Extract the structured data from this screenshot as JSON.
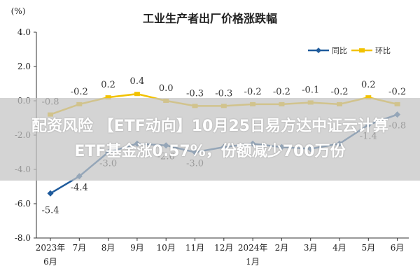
{
  "chart_data": {
    "type": "line",
    "title": "工业生产者出厂价格涨跌幅",
    "y_unit": "(%)",
    "ylim": [
      -8.0,
      4.0
    ],
    "yticks": [
      "4.0",
      "2.0",
      "0.0",
      "-2.0",
      "-4.0",
      "-6.0",
      "-8.0"
    ],
    "ytick_values": [
      4,
      2,
      0,
      -2,
      -4,
      -6,
      -8
    ],
    "categories": [
      [
        "2023年",
        "6月"
      ],
      [
        "7月"
      ],
      [
        "8月"
      ],
      [
        "9月"
      ],
      [
        "10月"
      ],
      [
        "11月"
      ],
      [
        "12月"
      ],
      [
        "2024年",
        "1月"
      ],
      [
        "2月"
      ],
      [
        "3月"
      ],
      [
        "4月"
      ],
      [
        "5月"
      ],
      [
        "6月"
      ]
    ],
    "series": [
      {
        "name": "同比",
        "color": "#1f5b9c",
        "values": [
          -5.4,
          -4.4,
          -3.0,
          -2.5,
          -2.6,
          -3.0,
          -2.7,
          -2.5,
          -2.7,
          -2.8,
          -2.5,
          -1.4,
          -0.8
        ],
        "labels": [
          "-5.4",
          "-4.4",
          "-3.0",
          "",
          "-2.6",
          "-3.0",
          "",
          "",
          "",
          "",
          "",
          "-1.4",
          "-0.8"
        ]
      },
      {
        "name": "环比",
        "color": "#f2c200",
        "values": [
          -0.8,
          -0.2,
          0.2,
          0.4,
          0.0,
          -0.3,
          -0.3,
          -0.2,
          -0.2,
          -0.1,
          -0.2,
          0.2,
          -0.2
        ],
        "labels": [
          "-0.8",
          "-0.2",
          "0.2",
          "0.4",
          "0.0",
          "-0.3",
          "-0.3",
          "-0.2",
          "-0.2",
          "-0.1",
          "-0.2",
          "0.2",
          "-0.2"
        ]
      }
    ],
    "legend_position": "top-right",
    "grid": false
  },
  "overlay": {
    "line1": "配资风险 【ETF动向】10月25日易方达中证云计算",
    "line2": "ETF基金涨0.57%，份额减少700万份"
  }
}
